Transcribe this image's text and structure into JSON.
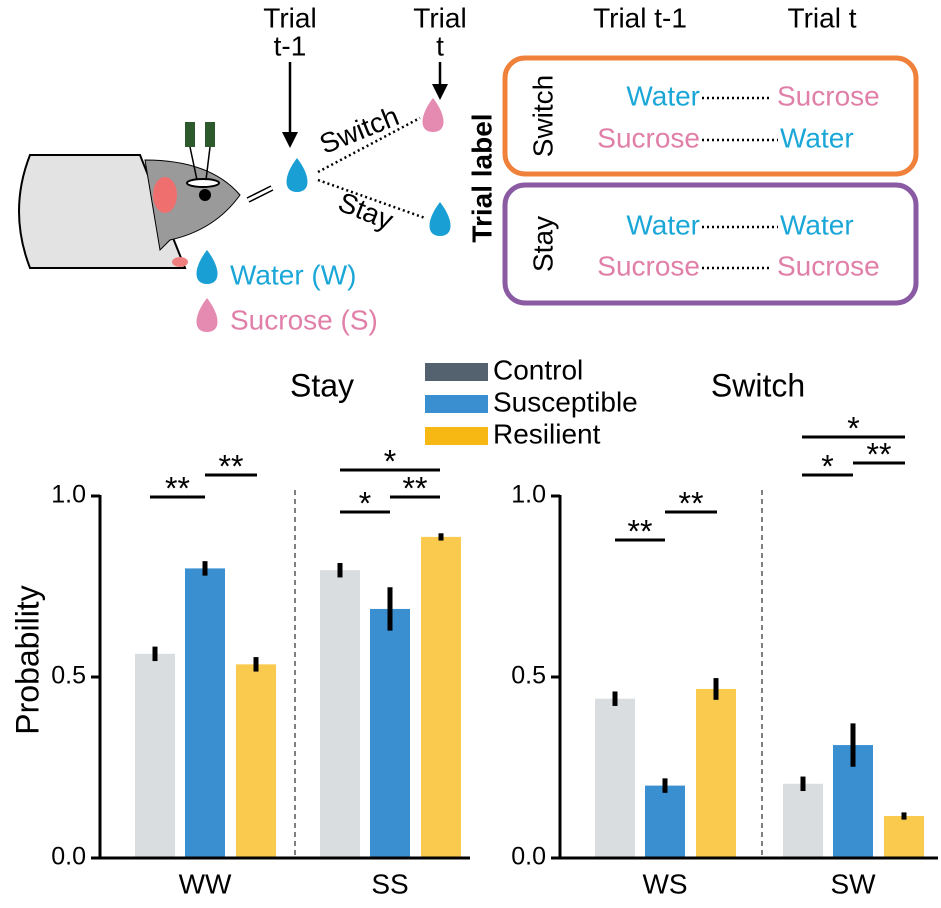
{
  "diagram": {
    "trial_prev": [
      "Trial",
      "t-1"
    ],
    "trial_next": [
      "Trial",
      "t"
    ],
    "switch": "Switch",
    "stay": "Stay",
    "legend": [
      "Water (W)",
      "Sucrose (S)"
    ],
    "table": {
      "col_headers": [
        "Trial t-1",
        "Trial t"
      ],
      "side_label": "Trial label",
      "rows": [
        {
          "label": "Switch",
          "pairs": [
            [
              "Water",
              "Sucrose"
            ],
            [
              "Sucrose",
              "Water"
            ]
          ]
        },
        {
          "label": "Stay",
          "pairs": [
            [
              "Water",
              "Water"
            ],
            [
              "Sucrose",
              "Sucrose"
            ]
          ]
        }
      ]
    }
  },
  "chart_data": [
    {
      "type": "bar",
      "title": "Stay",
      "ylabel": "Probability",
      "categories": [
        "WW",
        "SS"
      ],
      "ylim": [
        0,
        1
      ],
      "yticks": [
        {
          "value": 0,
          "label": "0.0"
        },
        {
          "value": 0.5,
          "label": "0.5"
        },
        {
          "value": 1,
          "label": "1.0"
        }
      ],
      "series": [
        {
          "name": "Control",
          "color": "#546270",
          "values": [
            0.564,
            0.795
          ],
          "errors": [
            0.02,
            0.02
          ]
        },
        {
          "name": "Susceptible",
          "color": "#3a8fd1",
          "values": [
            0.8,
            0.688
          ],
          "errors": [
            0.02,
            0.06
          ]
        },
        {
          "name": "Resilient",
          "color": "#f7b813",
          "values": [
            0.535,
            0.887
          ],
          "errors": [
            0.02,
            0.01
          ]
        }
      ],
      "annotations": [
        "**",
        "**",
        "*",
        "*",
        "**"
      ]
    },
    {
      "type": "bar",
      "title": "Switch",
      "categories": [
        "WS",
        "SW"
      ],
      "ylim": [
        0,
        1
      ],
      "yticks": [
        {
          "value": 0,
          "label": "0.0"
        },
        {
          "value": 0.5,
          "label": "0.5"
        },
        {
          "value": 1,
          "label": "1.0"
        }
      ],
      "series": [
        {
          "color": "#546270",
          "values": [
            0.44,
            0.205
          ],
          "errors": [
            0.02,
            0.02
          ]
        },
        {
          "color": "#3a8fd1",
          "values": [
            0.2,
            0.312
          ],
          "errors": [
            0.02,
            0.06
          ]
        },
        {
          "color": "#f7b813",
          "values": [
            0.467,
            0.116
          ],
          "errors": [
            0.03,
            0.01
          ]
        }
      ],
      "annotations": [
        "**",
        "**",
        "*",
        "*",
        "**"
      ]
    }
  ]
}
